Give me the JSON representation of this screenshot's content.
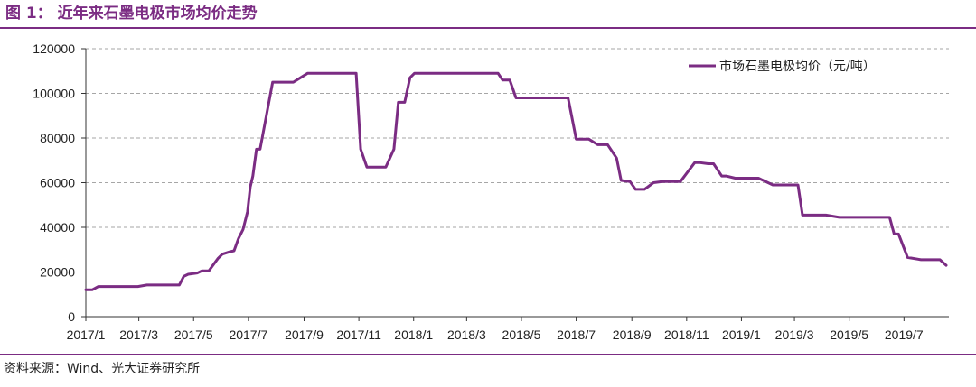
{
  "figure": {
    "title": "图 1： 近年来石墨电极市场均价走势",
    "source": "资料来源：Wind、光大证券研究所"
  },
  "colors": {
    "accent": "#7B2C83",
    "series": "#7B2C83",
    "grid": "#A6A6A6"
  },
  "chart_data": {
    "type": "line",
    "title": "",
    "xlabel": "",
    "ylabel": "",
    "ylim": [
      0,
      120000
    ],
    "yticks": [
      0,
      20000,
      40000,
      60000,
      80000,
      100000,
      120000
    ],
    "ytick_labels": [
      "0",
      "20000",
      "40000",
      "60000",
      "80000",
      "100000",
      "120000"
    ],
    "xlim": [
      "2017-01-01",
      "2019-08-20"
    ],
    "xticks": [
      "2017-01-01",
      "2017-03-01",
      "2017-05-01",
      "2017-07-01",
      "2017-09-01",
      "2017-11-01",
      "2018-01-01",
      "2018-03-01",
      "2018-05-01",
      "2018-07-01",
      "2018-09-01",
      "2018-11-01",
      "2019-01-01",
      "2019-03-01",
      "2019-05-01",
      "2019-07-01"
    ],
    "xtick_labels": [
      "2017/1",
      "2017/3",
      "2017/5",
      "2017/7",
      "2017/9",
      "2017/11",
      "2018/1",
      "2018/3",
      "2018/5",
      "2018/7",
      "2018/9",
      "2018/11",
      "2019/1",
      "2019/3",
      "2019/5",
      "2019/7"
    ],
    "grid": "horizontal dashed",
    "legend_position": "top-right",
    "series": [
      {
        "name": "市场石墨电极均价（元/吨）",
        "x": [
          "2017-01-01",
          "2017-01-08",
          "2017-01-15",
          "2017-01-29",
          "2017-02-15",
          "2017-02-28",
          "2017-03-10",
          "2017-03-25",
          "2017-04-05",
          "2017-04-08",
          "2017-04-15",
          "2017-04-20",
          "2017-04-25",
          "2017-05-05",
          "2017-05-10",
          "2017-05-18",
          "2017-05-28",
          "2017-06-02",
          "2017-06-10",
          "2017-06-15",
          "2017-06-20",
          "2017-06-25",
          "2017-06-30",
          "2017-07-03",
          "2017-07-06",
          "2017-07-10",
          "2017-07-14",
          "2017-07-28",
          "2017-08-08",
          "2017-08-15",
          "2017-08-20",
          "2017-08-28",
          "2017-09-05",
          "2017-09-15",
          "2017-09-30",
          "2017-10-15",
          "2017-10-29",
          "2017-11-03",
          "2017-11-10",
          "2017-11-20",
          "2017-12-01",
          "2017-12-10",
          "2017-12-15",
          "2017-12-18",
          "2017-12-22",
          "2017-12-28",
          "2018-01-02",
          "2018-01-05",
          "2018-01-15",
          "2018-02-15",
          "2018-03-15",
          "2018-04-05",
          "2018-04-10",
          "2018-04-18",
          "2018-04-25",
          "2018-05-15",
          "2018-06-01",
          "2018-06-18",
          "2018-06-22",
          "2018-07-01",
          "2018-07-08",
          "2018-07-15",
          "2018-07-25",
          "2018-07-30",
          "2018-08-05",
          "2018-08-15",
          "2018-08-20",
          "2018-08-30",
          "2018-09-05",
          "2018-09-15",
          "2018-09-25",
          "2018-10-05",
          "2018-10-20",
          "2018-10-25",
          "2018-11-10",
          "2018-11-15",
          "2018-11-25",
          "2018-12-01",
          "2018-12-10",
          "2018-12-15",
          "2018-12-25",
          "2019-01-05",
          "2019-01-10",
          "2019-01-20",
          "2019-02-05",
          "2019-02-15",
          "2019-02-18",
          "2019-02-25",
          "2019-03-05",
          "2019-03-10",
          "2019-03-20",
          "2019-04-05",
          "2019-04-20",
          "2019-05-10",
          "2019-05-25",
          "2019-06-05",
          "2019-06-10",
          "2019-06-15",
          "2019-06-20",
          "2019-06-25",
          "2019-07-05",
          "2019-07-20",
          "2019-08-01",
          "2019-08-10",
          "2019-08-17"
        ],
        "values": [
          12000,
          12000,
          13500,
          13500,
          13500,
          13500,
          14200,
          14200,
          14200,
          14200,
          14200,
          18000,
          19000,
          19500,
          20500,
          20500,
          26000,
          28000,
          29000,
          29500,
          35000,
          39000,
          47000,
          58000,
          63000,
          75000,
          75000,
          105000,
          105000,
          105000,
          105000,
          107000,
          109000,
          109000,
          109000,
          109000,
          109000,
          75000,
          67000,
          67000,
          67000,
          75000,
          96000,
          96000,
          96000,
          107000,
          109000,
          109000,
          109000,
          109000,
          109000,
          109000,
          106000,
          106000,
          98000,
          98000,
          98000,
          98000,
          98000,
          79500,
          79500,
          79500,
          77000,
          77000,
          77000,
          71000,
          61000,
          60500,
          57000,
          57000,
          60000,
          60500,
          60500,
          60500,
          69000,
          69000,
          68500,
          68500,
          63000,
          63000,
          62000,
          62000,
          62000,
          62000,
          59000,
          59000,
          59000,
          59000,
          59000,
          45500,
          45500,
          45500,
          44500,
          44500,
          44500,
          44500,
          44500,
          44500,
          37000,
          37000,
          26500,
          25500,
          25500,
          25500,
          23000
        ]
      }
    ]
  }
}
